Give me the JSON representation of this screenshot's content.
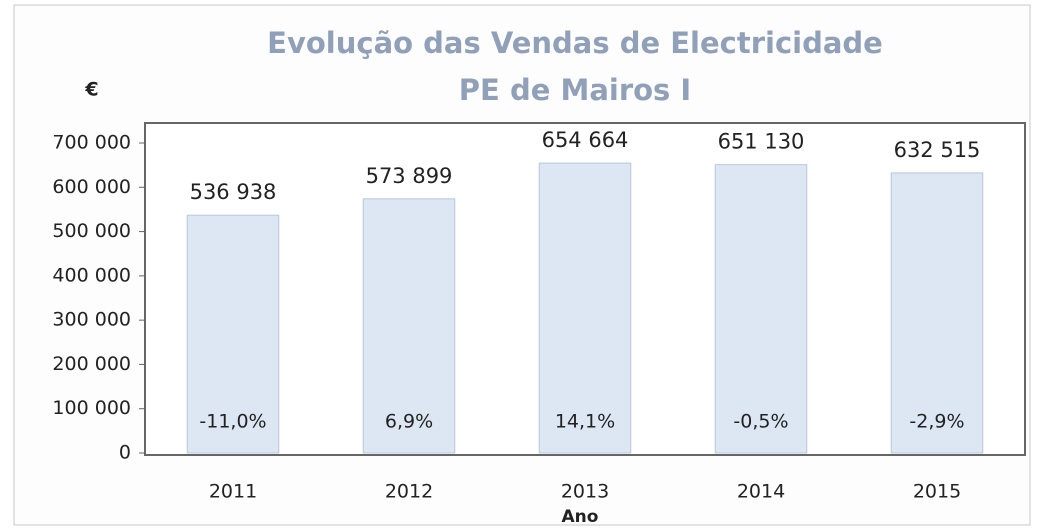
{
  "chart_data": {
    "type": "bar",
    "title": "Evolução das Vendas de Electricidade",
    "subtitle": "PE de Mairos I",
    "y_label": "€",
    "x_label": "Ano",
    "categories": [
      "2011",
      "2012",
      "2013",
      "2014",
      "2015"
    ],
    "values": [
      536938,
      573899,
      654664,
      651130,
      632515
    ],
    "value_labels": [
      "536 938",
      "573 899",
      "654 664",
      "651 130",
      "632 515"
    ],
    "growth_labels": [
      "-11,0%",
      "6,9%",
      "14,1%",
      "-0,5%",
      "-2,9%"
    ],
    "color": "#dde7f3",
    "ylim": [
      0,
      700000
    ],
    "yticks": [
      0,
      {
        "value": 100000,
        "label": "100 000"
      },
      {
        "value": 200000,
        "label": "200 000"
      },
      {
        "value": 300000,
        "label": "300 000"
      },
      {
        "value": 400000,
        "label": "400 000"
      },
      {
        "value": 500000,
        "label": "500 000"
      },
      {
        "value": 600000,
        "label": "600 000"
      },
      {
        "value": 700000,
        "label": "700 000"
      }
    ],
    "grid": false
  }
}
